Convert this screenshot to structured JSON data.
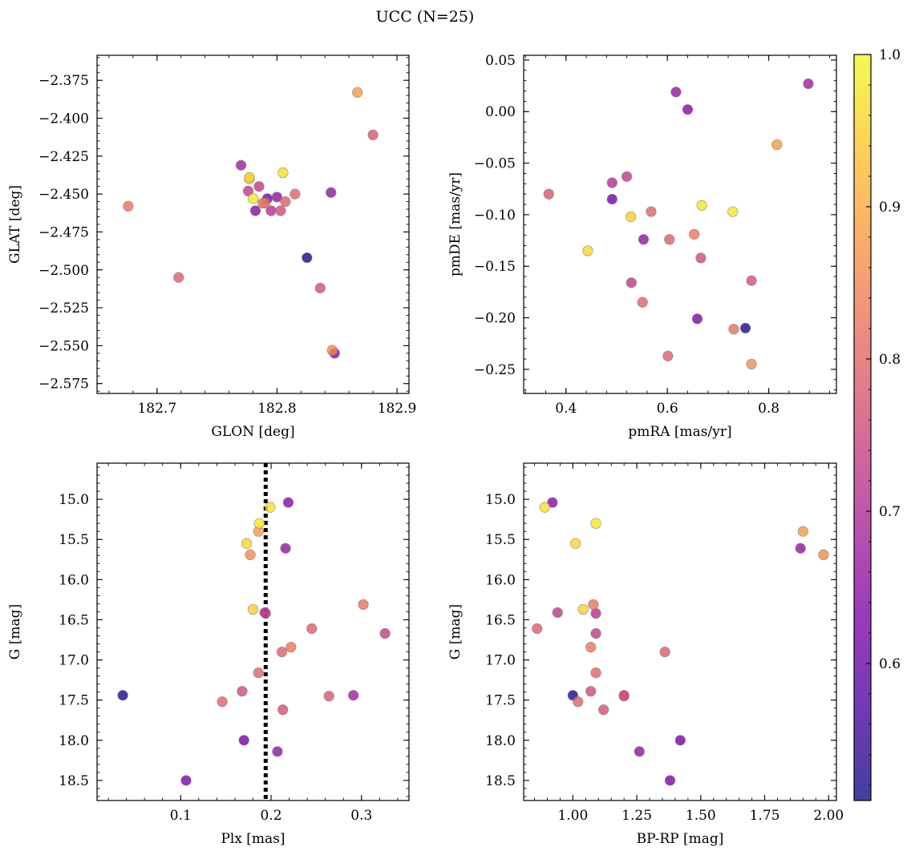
{
  "chart_data": {
    "suptitle": "UCC (N=25)",
    "colorbar": {
      "colormap": "plasma",
      "range": [
        0.51,
        1.0
      ],
      "ticks": [
        0.6,
        0.7,
        0.8,
        0.9,
        1.0
      ],
      "tick_labels": [
        "0.6",
        "0.7",
        "0.8",
        "0.9",
        "1.0"
      ]
    },
    "stars": [
      {
        "glon": 182.867,
        "glat": -2.383,
        "pmra": 0.816,
        "pmde": -0.032,
        "plx": 0.186,
        "g": 15.4,
        "bprp": 1.9,
        "prob": 0.88
      },
      {
        "glon": 182.88,
        "glat": -2.411,
        "pmra": 0.366,
        "pmde": -0.08,
        "plx": 0.264,
        "g": 17.45,
        "bprp": 1.2,
        "prob": 0.78
      },
      {
        "glon": 182.77,
        "glat": -2.431,
        "pmra": 0.878,
        "pmde": 0.027,
        "plx": 0.291,
        "g": 17.44,
        "bprp": 1.2,
        "prob": 0.68
      },
      {
        "glon": 182.777,
        "glat": -2.439,
        "pmra": 0.443,
        "pmde": -0.135,
        "plx": 0.173,
        "g": 15.55,
        "bprp": 1.01,
        "prob": 0.96
      },
      {
        "glon": 182.777,
        "glat": -2.44,
        "pmra": 0.528,
        "pmde": -0.102,
        "plx": 0.18,
        "g": 16.37,
        "bprp": 1.04,
        "prob": 0.95
      },
      {
        "glon": 182.805,
        "glat": -2.436,
        "pmra": 0.668,
        "pmde": -0.091,
        "plx": 0.199,
        "g": 15.1,
        "bprp": 0.89,
        "prob": 0.97
      },
      {
        "glon": 182.845,
        "glat": -2.449,
        "pmra": 0.617,
        "pmde": 0.019,
        "plx": 0.216,
        "g": 15.61,
        "bprp": 1.89,
        "prob": 0.66
      },
      {
        "glon": 182.776,
        "glat": -2.448,
        "pmra": 0.52,
        "pmde": -0.063,
        "plx": 0.193,
        "g": 16.41,
        "bprp": 0.94,
        "prob": 0.73
      },
      {
        "glon": 182.78,
        "glat": -2.453,
        "pmra": 0.729,
        "pmde": -0.097,
        "plx": 0.187,
        "g": 15.3,
        "bprp": 1.09,
        "prob": 0.98
      },
      {
        "glon": 182.792,
        "glat": -2.453,
        "pmra": 0.491,
        "pmde": -0.085,
        "plx": 0.17,
        "g": 18.0,
        "bprp": 1.42,
        "prob": 0.62
      },
      {
        "glon": 182.788,
        "glat": -2.456,
        "pmra": 0.653,
        "pmde": -0.119,
        "plx": 0.222,
        "g": 16.84,
        "bprp": 1.07,
        "prob": 0.83
      },
      {
        "glon": 182.79,
        "glat": -2.456,
        "pmra": 0.568,
        "pmde": -0.097,
        "plx": 0.186,
        "g": 17.16,
        "bprp": 1.09,
        "prob": 0.8
      },
      {
        "glon": 182.807,
        "glat": -2.455,
        "pmra": 0.604,
        "pmde": -0.124,
        "plx": 0.212,
        "g": 16.9,
        "bprp": 1.36,
        "prob": 0.79
      },
      {
        "glon": 182.782,
        "glat": -2.461,
        "pmra": 0.64,
        "pmde": 0.002,
        "plx": 0.219,
        "g": 15.04,
        "bprp": 0.92,
        "prob": 0.64
      },
      {
        "glon": 182.795,
        "glat": -2.461,
        "pmra": 0.491,
        "pmde": -0.069,
        "plx": 0.194,
        "g": 16.42,
        "bprp": 1.09,
        "prob": 0.71
      },
      {
        "glon": 182.803,
        "glat": -2.461,
        "pmra": 0.666,
        "pmde": -0.142,
        "plx": 0.168,
        "g": 17.39,
        "bprp": 1.07,
        "prob": 0.76
      },
      {
        "glon": 182.676,
        "glat": -2.458,
        "pmra": 0.731,
        "pmde": -0.211,
        "plx": 0.302,
        "g": 16.31,
        "bprp": 1.08,
        "prob": 0.82
      },
      {
        "glon": 182.718,
        "glat": -2.505,
        "pmra": 0.601,
        "pmde": -0.237,
        "plx": 0.245,
        "g": 16.61,
        "bprp": 0.86,
        "prob": 0.79
      },
      {
        "glon": 182.825,
        "glat": -2.492,
        "pmra": 0.754,
        "pmde": -0.21,
        "plx": 0.036,
        "g": 17.44,
        "bprp": 1.0,
        "prob": 0.52
      },
      {
        "glon": 182.836,
        "glat": -2.512,
        "pmra": 0.766,
        "pmde": -0.164,
        "plx": 0.213,
        "g": 17.62,
        "bprp": 1.12,
        "prob": 0.77
      },
      {
        "glon": 182.846,
        "glat": -2.553,
        "pmra": 0.766,
        "pmde": -0.245,
        "plx": 0.177,
        "g": 15.69,
        "bprp": 1.98,
        "prob": 0.86
      },
      {
        "glon": 182.848,
        "glat": -2.555,
        "pmra": 0.659,
        "pmde": -0.201,
        "plx": 0.106,
        "g": 18.5,
        "bprp": 1.38,
        "prob": 0.63
      },
      {
        "glon": 182.815,
        "glat": -2.45,
        "pmra": 0.551,
        "pmde": -0.185,
        "plx": 0.146,
        "g": 17.52,
        "bprp": 1.02,
        "prob": 0.8
      },
      {
        "glon": 182.785,
        "glat": -2.445,
        "pmra": 0.529,
        "pmde": -0.166,
        "plx": 0.326,
        "g": 16.67,
        "bprp": 1.09,
        "prob": 0.73
      },
      {
        "glon": 182.8,
        "glat": -2.452,
        "pmra": 0.553,
        "pmde": -0.124,
        "plx": 0.207,
        "g": 18.14,
        "bprp": 1.26,
        "prob": 0.66
      }
    ],
    "panels": [
      {
        "type": "scatter",
        "x_key": "glon",
        "y_key": "glat",
        "xlabel": "GLON [deg]",
        "ylabel": "GLAT [deg]",
        "xlim": [
          182.65,
          182.91
        ],
        "ylim": [
          -2.5815,
          -2.3585
        ],
        "xticks": [
          182.7,
          182.8,
          182.9
        ],
        "xtick_labels": [
          "182.7",
          "182.8",
          "182.9"
        ],
        "yticks": [
          -2.375,
          -2.4,
          -2.425,
          -2.45,
          -2.475,
          -2.5,
          -2.525,
          -2.55,
          -2.575
        ],
        "ytick_labels": [
          "−2.375",
          "−2.400",
          "−2.425",
          "−2.450",
          "−2.475",
          "−2.500",
          "−2.525",
          "−2.550",
          "−2.575"
        ]
      },
      {
        "type": "scatter",
        "x_key": "pmra",
        "y_key": "pmde",
        "xlabel": "pmRA [mas/yr]",
        "ylabel": "pmDE [mas/yr]",
        "xlim": [
          0.3165,
          0.9335
        ],
        "ylim": [
          -0.2734,
          0.0546
        ],
        "xticks": [
          0.4,
          0.6,
          0.8
        ],
        "xtick_labels": [
          "0.4",
          "0.6",
          "0.8"
        ],
        "yticks": [
          0.05,
          0.0,
          -0.05,
          -0.1,
          -0.15,
          -0.2,
          -0.25
        ],
        "ytick_labels": [
          "0.05",
          "0.00",
          "−0.05",
          "−0.10",
          "−0.15",
          "−0.20",
          "−0.25"
        ]
      },
      {
        "type": "scatter",
        "x_key": "plx",
        "y_key": "g",
        "xlabel": "Plx [mas]",
        "ylabel": "G [mag]",
        "xlim": [
          0.0075,
          0.3525
        ],
        "ylim": [
          18.75,
          14.55
        ],
        "invert_y": true,
        "vline": 0.194,
        "xticks": [
          0.1,
          0.2,
          0.3
        ],
        "xtick_labels": [
          "0.1",
          "0.2",
          "0.3"
        ],
        "yticks": [
          15.0,
          15.5,
          16.0,
          16.5,
          17.0,
          17.5,
          18.0,
          18.5
        ],
        "ytick_labels": [
          "15.0",
          "15.5",
          "16.0",
          "16.5",
          "17.0",
          "17.5",
          "18.0",
          "18.5"
        ]
      },
      {
        "type": "scatter",
        "x_key": "bprp",
        "y_key": "g",
        "xlabel": "BP-RP [mag]",
        "ylabel": "G [mag]",
        "xlim": [
          0.8075,
          2.0305
        ],
        "ylim": [
          18.75,
          14.55
        ],
        "invert_y": true,
        "xticks": [
          1.0,
          1.25,
          1.5,
          1.75,
          2.0
        ],
        "xtick_labels": [
          "1.00",
          "1.25",
          "1.50",
          "1.75",
          "2.00"
        ],
        "yticks": [
          15.0,
          15.5,
          16.0,
          16.5,
          17.0,
          17.5,
          18.0,
          18.5
        ],
        "ytick_labels": [
          "15.0",
          "15.5",
          "16.0",
          "16.5",
          "17.0",
          "17.5",
          "18.0",
          "18.5"
        ]
      }
    ]
  }
}
